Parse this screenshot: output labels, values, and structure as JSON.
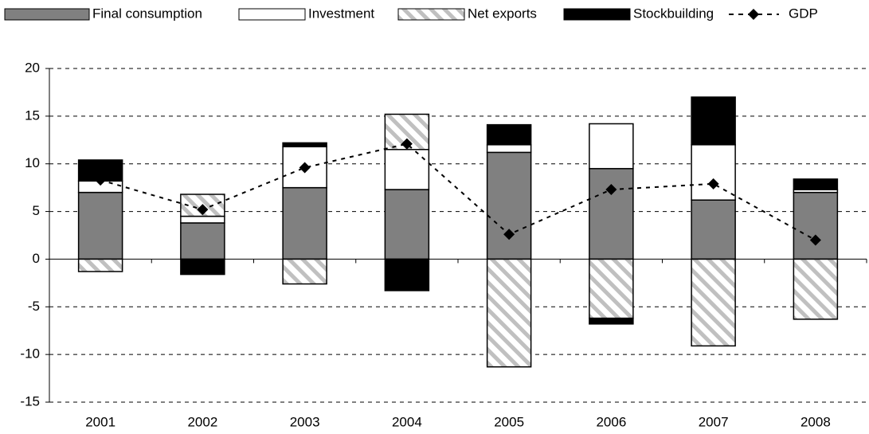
{
  "chart_data": {
    "type": "stacked_bar_line",
    "categories": [
      "2001",
      "2002",
      "2003",
      "2004",
      "2005",
      "2006",
      "2007",
      "2008"
    ],
    "series": [
      {
        "name": "Final consumption",
        "color": "#808080",
        "values": [
          7.0,
          3.8,
          7.5,
          7.3,
          11.2,
          9.5,
          6.2,
          7.0
        ]
      },
      {
        "name": "Investment",
        "color": "#ffffff",
        "values": [
          1.2,
          0.7,
          4.3,
          4.2,
          0.8,
          4.7,
          5.8,
          0.3
        ]
      },
      {
        "name": "Net exports",
        "color": "#c0c0c0",
        "hatched": true,
        "values": [
          -1.3,
          2.3,
          -2.6,
          3.7,
          -11.3,
          -6.2,
          -9.1,
          -6.3
        ]
      },
      {
        "name": "Stockbuilding",
        "color": "#000000",
        "values": [
          2.2,
          -1.6,
          0.4,
          -3.3,
          2.1,
          -0.6,
          5.0,
          1.1
        ]
      },
      {
        "name": "GDP",
        "type": "line",
        "color": "#000000",
        "values": [
          8.3,
          5.2,
          9.6,
          12.1,
          2.6,
          7.3,
          7.9,
          2.0
        ]
      }
    ],
    "ylim": [
      -15,
      20
    ],
    "yticks": [
      -15,
      -10,
      -5,
      0,
      5,
      10,
      15,
      20
    ],
    "grid": true,
    "legend": "top"
  }
}
